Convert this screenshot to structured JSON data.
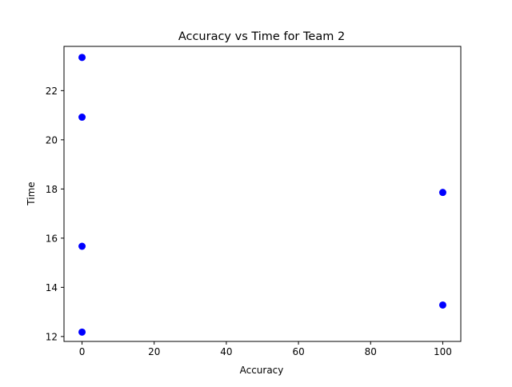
{
  "chart_data": {
    "type": "scatter",
    "title": "Accuracy vs Time for Team 2",
    "xlabel": "Accuracy",
    "ylabel": "Time",
    "xlim": [
      -5,
      105
    ],
    "ylim": [
      11.8,
      23.8
    ],
    "xticks": [
      0,
      20,
      40,
      60,
      80,
      100
    ],
    "yticks": [
      12,
      14,
      16,
      18,
      20,
      22
    ],
    "grid": false,
    "legend": "none",
    "marker_color": "#0000ff",
    "points": [
      {
        "x": 0,
        "y": 23.35
      },
      {
        "x": 0,
        "y": 20.92
      },
      {
        "x": 0,
        "y": 15.67
      },
      {
        "x": 0,
        "y": 12.18
      },
      {
        "x": 100,
        "y": 17.86
      },
      {
        "x": 100,
        "y": 13.28
      }
    ]
  }
}
